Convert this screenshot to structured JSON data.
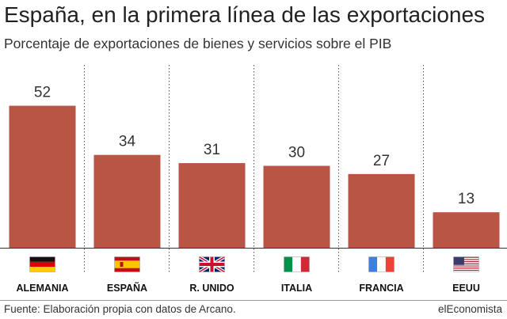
{
  "title": "España, en la primera línea de las exportaciones",
  "subtitle": "Porcentaje de exportaciones de bienes y servicios sobre el PIB",
  "source": "Fuente: Elaboración propia con datos de Arcano.",
  "brand": "elEconomista",
  "colors": {
    "bar": "#b85545",
    "axis": "#333333",
    "divider": "#555555"
  },
  "chart_data": {
    "type": "bar",
    "categories": [
      "ALEMANIA",
      "ESPAÑA",
      "R. UNIDO",
      "ITALIA",
      "FRANCIA",
      "EEUU"
    ],
    "values": [
      52,
      34,
      31,
      30,
      27,
      13
    ],
    "flags": [
      "flag-germany-icon",
      "flag-spain-icon",
      "flag-uk-icon",
      "flag-italy-icon",
      "flag-france-icon",
      "flag-usa-icon"
    ],
    "title": "España, en la primera línea de las exportaciones",
    "subtitle": "Porcentaje de exportaciones de bienes y servicios sobre el PIB",
    "xlabel": "",
    "ylabel": "",
    "ylim": [
      0,
      56
    ],
    "grid": false,
    "legend": "none"
  }
}
